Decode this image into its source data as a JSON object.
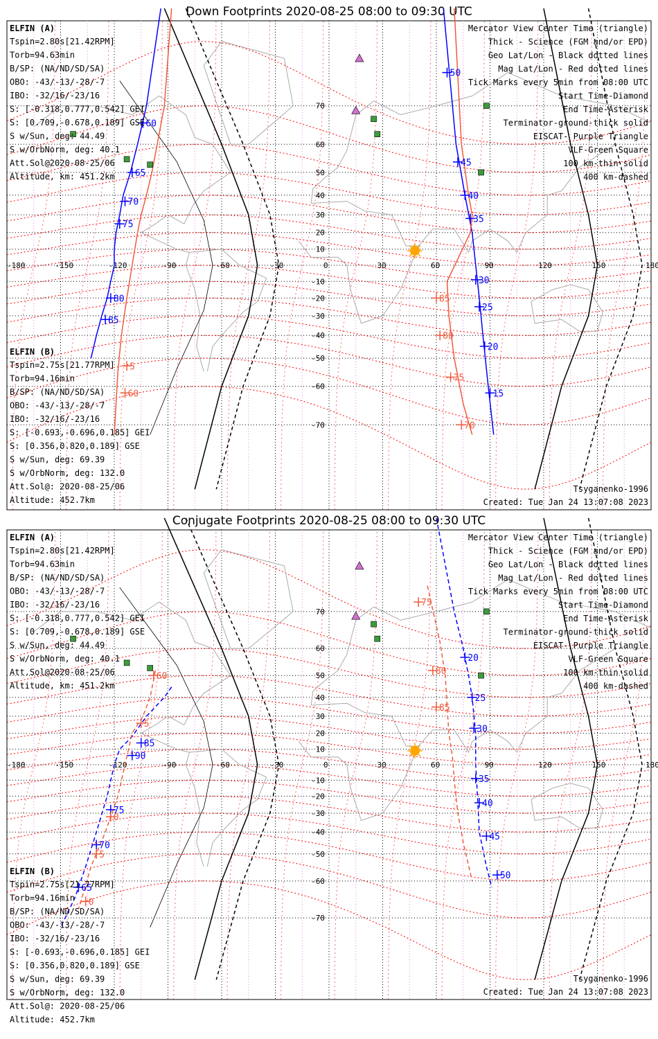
{
  "colors": {
    "elfin_a": "#0000ff",
    "elfin_b": "#f05a3c",
    "mag_grid": "#ff0000",
    "geo_grid": "#000000",
    "lon_guides": "#ee82ee",
    "eiscat": "#d070d0",
    "vlf": "#3c9c3c",
    "sun": "#ffa500"
  },
  "panels": [
    {
      "title": "Down Footprints 2020-08-25 08:00 to 09:30 UTC",
      "elfin_a_label": "ELFIN (A)",
      "elfin_a_info": [
        "Tspin=2.80s[21.42RPM]",
        "Torb=94.63min",
        "B/SP: (NA/ND/SD/SA)",
        "OBO: -43/-13/-28/-7",
        "IBO: -32/16/-23/16",
        "S: [-0.318,0.777,0.542] GEI",
        "S: [0.709,-0.678,0.189] GSE",
        "S w/Sun, deg: 44.49",
        "S w/OrbNorm, deg: 40.1",
        "Att.Sol@2020-08-25/06",
        "Altitude, km: 451.2km"
      ],
      "elfin_b_label": "ELFIN (B)",
      "elfin_b_info": [
        "Tspin=2.75s[21.77RPM]",
        "Torb=94.16min",
        "B/SP: (NA/ND/SD/SA)",
        "OBO: -43/-13/-28/-7",
        "IBO: -32/16/-23/16",
        "S: [-0.693,-0.696,0.185] GEI",
        "S: [0.356,0.820,0.189] GSE",
        "S w/Sun, deg: 69.39",
        "S w/OrbNorm, deg: 132.0",
        "Att.Sol@: 2020-08-25/06",
        "Altitude: 452.7km"
      ],
      "legend": [
        "Mercator View Center Time (triangle)",
        "Thick - Science (FGM and/or EPD)",
        "Geo Lat/Lon - Black dotted lines",
        "Mag Lat/Lon - Red dotted lines",
        "Tick Marks every 5min from 08:00 UTC",
        "Start Time-Diamond",
        "End Time-Asterisk",
        "Terminator-ground-thick solid",
        "EISCAT- Purple Triangle",
        "VLF-Green Square",
        "100 km-thin solid",
        "400 km-dashed"
      ],
      "model": "Tsyganenko-1996",
      "created": "Created: Tue Jan 24 13:07:08 2023",
      "lon_ticks": [
        "-180",
        "-150",
        "-120",
        "-90",
        "-60",
        "-30",
        "0",
        "30",
        "60",
        "90",
        "120",
        "150",
        "180"
      ],
      "lat_ticks": [
        "70",
        "60",
        "50",
        "40",
        "30",
        "20",
        "10",
        "-10",
        "-20",
        "-30",
        "-40",
        "-50",
        "-60",
        "-70"
      ],
      "elfin_a_path": [
        [
          -94,
          83
        ],
        [
          -102,
          70
        ],
        [
          -107,
          60
        ],
        [
          -111,
          50
        ],
        [
          -115,
          40
        ],
        [
          -117,
          30
        ],
        [
          -119,
          20
        ],
        [
          -120,
          10
        ],
        [
          -120,
          0
        ],
        [
          -122,
          -10
        ],
        [
          -124,
          -20
        ],
        [
          -127,
          -30
        ],
        [
          -130,
          -40
        ],
        [
          -133,
          -50
        ]
      ],
      "elfin_a_ticks": [
        {
          "label": "60",
          "lon": -104,
          "lat": 66
        },
        {
          "label": "65",
          "lon": -110,
          "lat": 50
        },
        {
          "label": "70",
          "lon": -114,
          "lat": 37
        },
        {
          "label": "75",
          "lon": -117,
          "lat": 25
        },
        {
          "label": "80",
          "lon": -122,
          "lat": -20
        },
        {
          "label": "85",
          "lon": -125,
          "lat": -32
        }
      ],
      "elfin_b_path": [
        [
          -88,
          83
        ],
        [
          -92,
          70
        ],
        [
          -96,
          60
        ],
        [
          -99,
          50
        ],
        [
          -102,
          40
        ],
        [
          -105,
          30
        ],
        [
          -107,
          20
        ],
        [
          -110,
          0
        ],
        [
          -113,
          -20
        ],
        [
          -116,
          -40
        ],
        [
          -118,
          -55
        ],
        [
          -120,
          -72
        ]
      ],
      "elfin_b_ticks": [
        {
          "label": "5",
          "lon": -113,
          "lat": -53
        },
        {
          "label": "60",
          "lon": -114,
          "lat": -62
        }
      ],
      "elfin_a2_path": [
        [
          64,
          83
        ],
        [
          71,
          60
        ],
        [
          76,
          40
        ],
        [
          80,
          20
        ],
        [
          82,
          0
        ],
        [
          84,
          -20
        ],
        [
          86,
          -40
        ],
        [
          89,
          -60
        ],
        [
          92,
          -72
        ]
      ],
      "elfin_a2_ticks": [
        {
          "label": "50",
          "lon": 66,
          "lat": 76
        },
        {
          "label": "45",
          "lon": 72,
          "lat": 54
        },
        {
          "label": "40",
          "lon": 76,
          "lat": 40
        },
        {
          "label": "35",
          "lon": 79,
          "lat": 28
        },
        {
          "label": "30",
          "lon": 82,
          "lat": -9
        },
        {
          "label": "25",
          "lon": 84,
          "lat": -25
        },
        {
          "label": "20",
          "lon": 87,
          "lat": -45
        },
        {
          "label": "15",
          "lon": 90,
          "lat": -62
        }
      ],
      "elfin_b2_path": [
        [
          70,
          83
        ],
        [
          74,
          60
        ],
        [
          78,
          40
        ],
        [
          80,
          30
        ],
        [
          79,
          20
        ],
        [
          66,
          -10
        ],
        [
          67,
          -30
        ],
        [
          70,
          -50
        ],
        [
          75,
          -65
        ],
        [
          80,
          -72
        ]
      ],
      "elfin_b2_ticks": [
        {
          "label": "85",
          "lon": 60,
          "lat": -20
        },
        {
          "label": "80",
          "lon": 62,
          "lat": -40
        },
        {
          "label": "75",
          "lon": 68,
          "lat": -57
        },
        {
          "label": "70",
          "lon": 74,
          "lat": -70
        }
      ],
      "terminator_a": [
        [
          -92,
          83
        ],
        [
          -60,
          60
        ],
        [
          -45,
          30
        ],
        [
          -40,
          0
        ],
        [
          -45,
          -30
        ],
        [
          -60,
          -60
        ],
        [
          -75,
          -80
        ]
      ],
      "terminator_b": [
        [
          120,
          83
        ],
        [
          135,
          60
        ],
        [
          145,
          30
        ],
        [
          150,
          0
        ],
        [
          145,
          -30
        ],
        [
          130,
          -60
        ],
        [
          115,
          -80
        ]
      ]
    },
    {
      "title": "Conjugate Footprints 2020-08-25 08:00 to 09:30 UTC",
      "elfin_a_label": "ELFIN (A)",
      "elfin_a_info": [
        "Tspin=2.80s[21.42RPM]",
        "Torb=94.63min",
        "B/SP: (NA/ND/SD/SA)",
        "OBO: -43/-13/-28/-7",
        "IBO: -32/16/-23/16",
        "S: [-0.318,0.777,0.542] GEI",
        "S: [0.709,-0.678,0.189] GSE",
        "S w/Sun, deg: 44.49",
        "S w/OrbNorm, deg: 40.1",
        "Att.Sol@2020-08-25/06",
        "Altitude, km: 451.2km"
      ],
      "elfin_b_label": "ELFIN (B)",
      "elfin_b_info": [
        "Tspin=2.75s[21.77RPM]",
        "Torb=94.16min",
        "B/SP: (NA/ND/SD/SA)",
        "OBO: -43/-13/-28/-7",
        "IBO: -32/16/-23/16",
        "S: [-0.693,-0.696,0.185] GEI",
        "S: [0.356,0.820,0.189] GSE",
        "S w/Sun, deg: 69.39",
        "S w/OrbNorm, deg: 132.0",
        "Att.Sol@: 2020-08-25/06",
        "Altitude: 452.7km"
      ],
      "legend": [
        "Mercator View Center Time (triangle)",
        "Thick - Science (FGM and/or EPD)",
        "Geo Lat/Lon - Black dotted lines",
        "Mag Lat/Lon - Red dotted lines",
        "Tick Marks every 5min from 08:00 UTC",
        "Start Time-Diamond",
        "End Time-Asterisk",
        "Terminator-ground-thick solid",
        "EISCAT- Purple Triangle",
        "VLF-Green Square",
        "100 km-thin solid",
        "400 km-dashed"
      ],
      "model": "Tsyganenko-1996",
      "created": "Created: Tue Jan 24 13:07:08 2023",
      "lon_ticks": [
        "-180",
        "-150",
        "-120",
        "-90",
        "-60",
        "-30",
        "0",
        "30",
        "60",
        "90",
        "120",
        "150",
        "180"
      ],
      "lat_ticks": [
        "70",
        "60",
        "50",
        "40",
        "30",
        "20",
        "10",
        "-10",
        "-20",
        "-30",
        "-40",
        "-50",
        "-60",
        "-70"
      ],
      "elfin_a_path": [
        [
          -88,
          45
        ],
        [
          -92,
          40
        ],
        [
          -102,
          30
        ],
        [
          -110,
          18
        ],
        [
          -117,
          10
        ],
        [
          -120,
          0
        ],
        [
          -124,
          -20
        ],
        [
          -130,
          -40
        ],
        [
          -136,
          -55
        ],
        [
          -142,
          -65
        ],
        [
          -150,
          -72
        ]
      ],
      "elfin_a_ticks": [
        {
          "label": "85",
          "lon": -105,
          "lat": 14
        },
        {
          "label": "90",
          "lon": -110,
          "lat": 6
        },
        {
          "label": "75",
          "lon": -122,
          "lat": -28
        },
        {
          "label": "70",
          "lon": -130,
          "lat": -46
        },
        {
          "label": "65",
          "lon": -140,
          "lat": -62
        }
      ],
      "elfin_b_path": [
        [
          -97,
          52
        ],
        [
          -100,
          40
        ],
        [
          -104,
          30
        ],
        [
          -110,
          20
        ],
        [
          -114,
          0
        ],
        [
          -118,
          -20
        ],
        [
          -125,
          -40
        ],
        [
          -133,
          -55
        ],
        [
          -140,
          -68
        ]
      ],
      "elfin_b_ticks": [
        {
          "label": "60",
          "lon": -98,
          "lat": 50
        },
        {
          "label": "5",
          "lon": -105,
          "lat": 26
        },
        {
          "label": "0",
          "lon": -122,
          "lat": -32
        },
        {
          "label": "5",
          "lon": -130,
          "lat": -50
        },
        {
          "label": "0",
          "lon": -136,
          "lat": -66
        }
      ],
      "elfin_a2_path": [
        [
          60,
          83
        ],
        [
          70,
          70
        ],
        [
          75,
          60
        ],
        [
          78,
          50
        ],
        [
          80,
          40
        ],
        [
          81,
          30
        ],
        [
          82,
          20
        ],
        [
          82,
          0
        ],
        [
          83,
          -20
        ],
        [
          84,
          -40
        ],
        [
          88,
          -55
        ],
        [
          91,
          -62
        ]
      ],
      "elfin_a2_ticks": [
        {
          "label": "20",
          "lon": 76,
          "lat": 57
        },
        {
          "label": "25",
          "lon": 80,
          "lat": 40
        },
        {
          "label": "30",
          "lon": 81,
          "lat": 23
        },
        {
          "label": "35",
          "lon": 82,
          "lat": -9
        },
        {
          "label": "40",
          "lon": 84,
          "lat": -24
        },
        {
          "label": "45",
          "lon": 88,
          "lat": -42
        },
        {
          "label": "50",
          "lon": 94,
          "lat": -58
        }
      ],
      "elfin_b2_path": [
        [
          55,
          75
        ],
        [
          62,
          62
        ],
        [
          65,
          50
        ],
        [
          66,
          35
        ],
        [
          67,
          20
        ],
        [
          69,
          5
        ],
        [
          70,
          -10
        ],
        [
          72,
          -30
        ],
        [
          75,
          -45
        ],
        [
          80,
          -60
        ]
      ],
      "elfin_b2_ticks": [
        {
          "label": "75",
          "lon": 50,
          "lat": 72
        },
        {
          "label": "80",
          "lon": 58,
          "lat": 52
        },
        {
          "label": "85",
          "lon": 60,
          "lat": 35
        }
      ],
      "terminator_a": [
        [
          -92,
          83
        ],
        [
          -60,
          60
        ],
        [
          -45,
          30
        ],
        [
          -40,
          0
        ],
        [
          -45,
          -30
        ],
        [
          -60,
          -60
        ],
        [
          -75,
          -80
        ]
      ],
      "terminator_b": [
        [
          120,
          83
        ],
        [
          135,
          60
        ],
        [
          145,
          30
        ],
        [
          150,
          0
        ],
        [
          145,
          -30
        ],
        [
          130,
          -60
        ],
        [
          115,
          -80
        ]
      ]
    }
  ]
}
